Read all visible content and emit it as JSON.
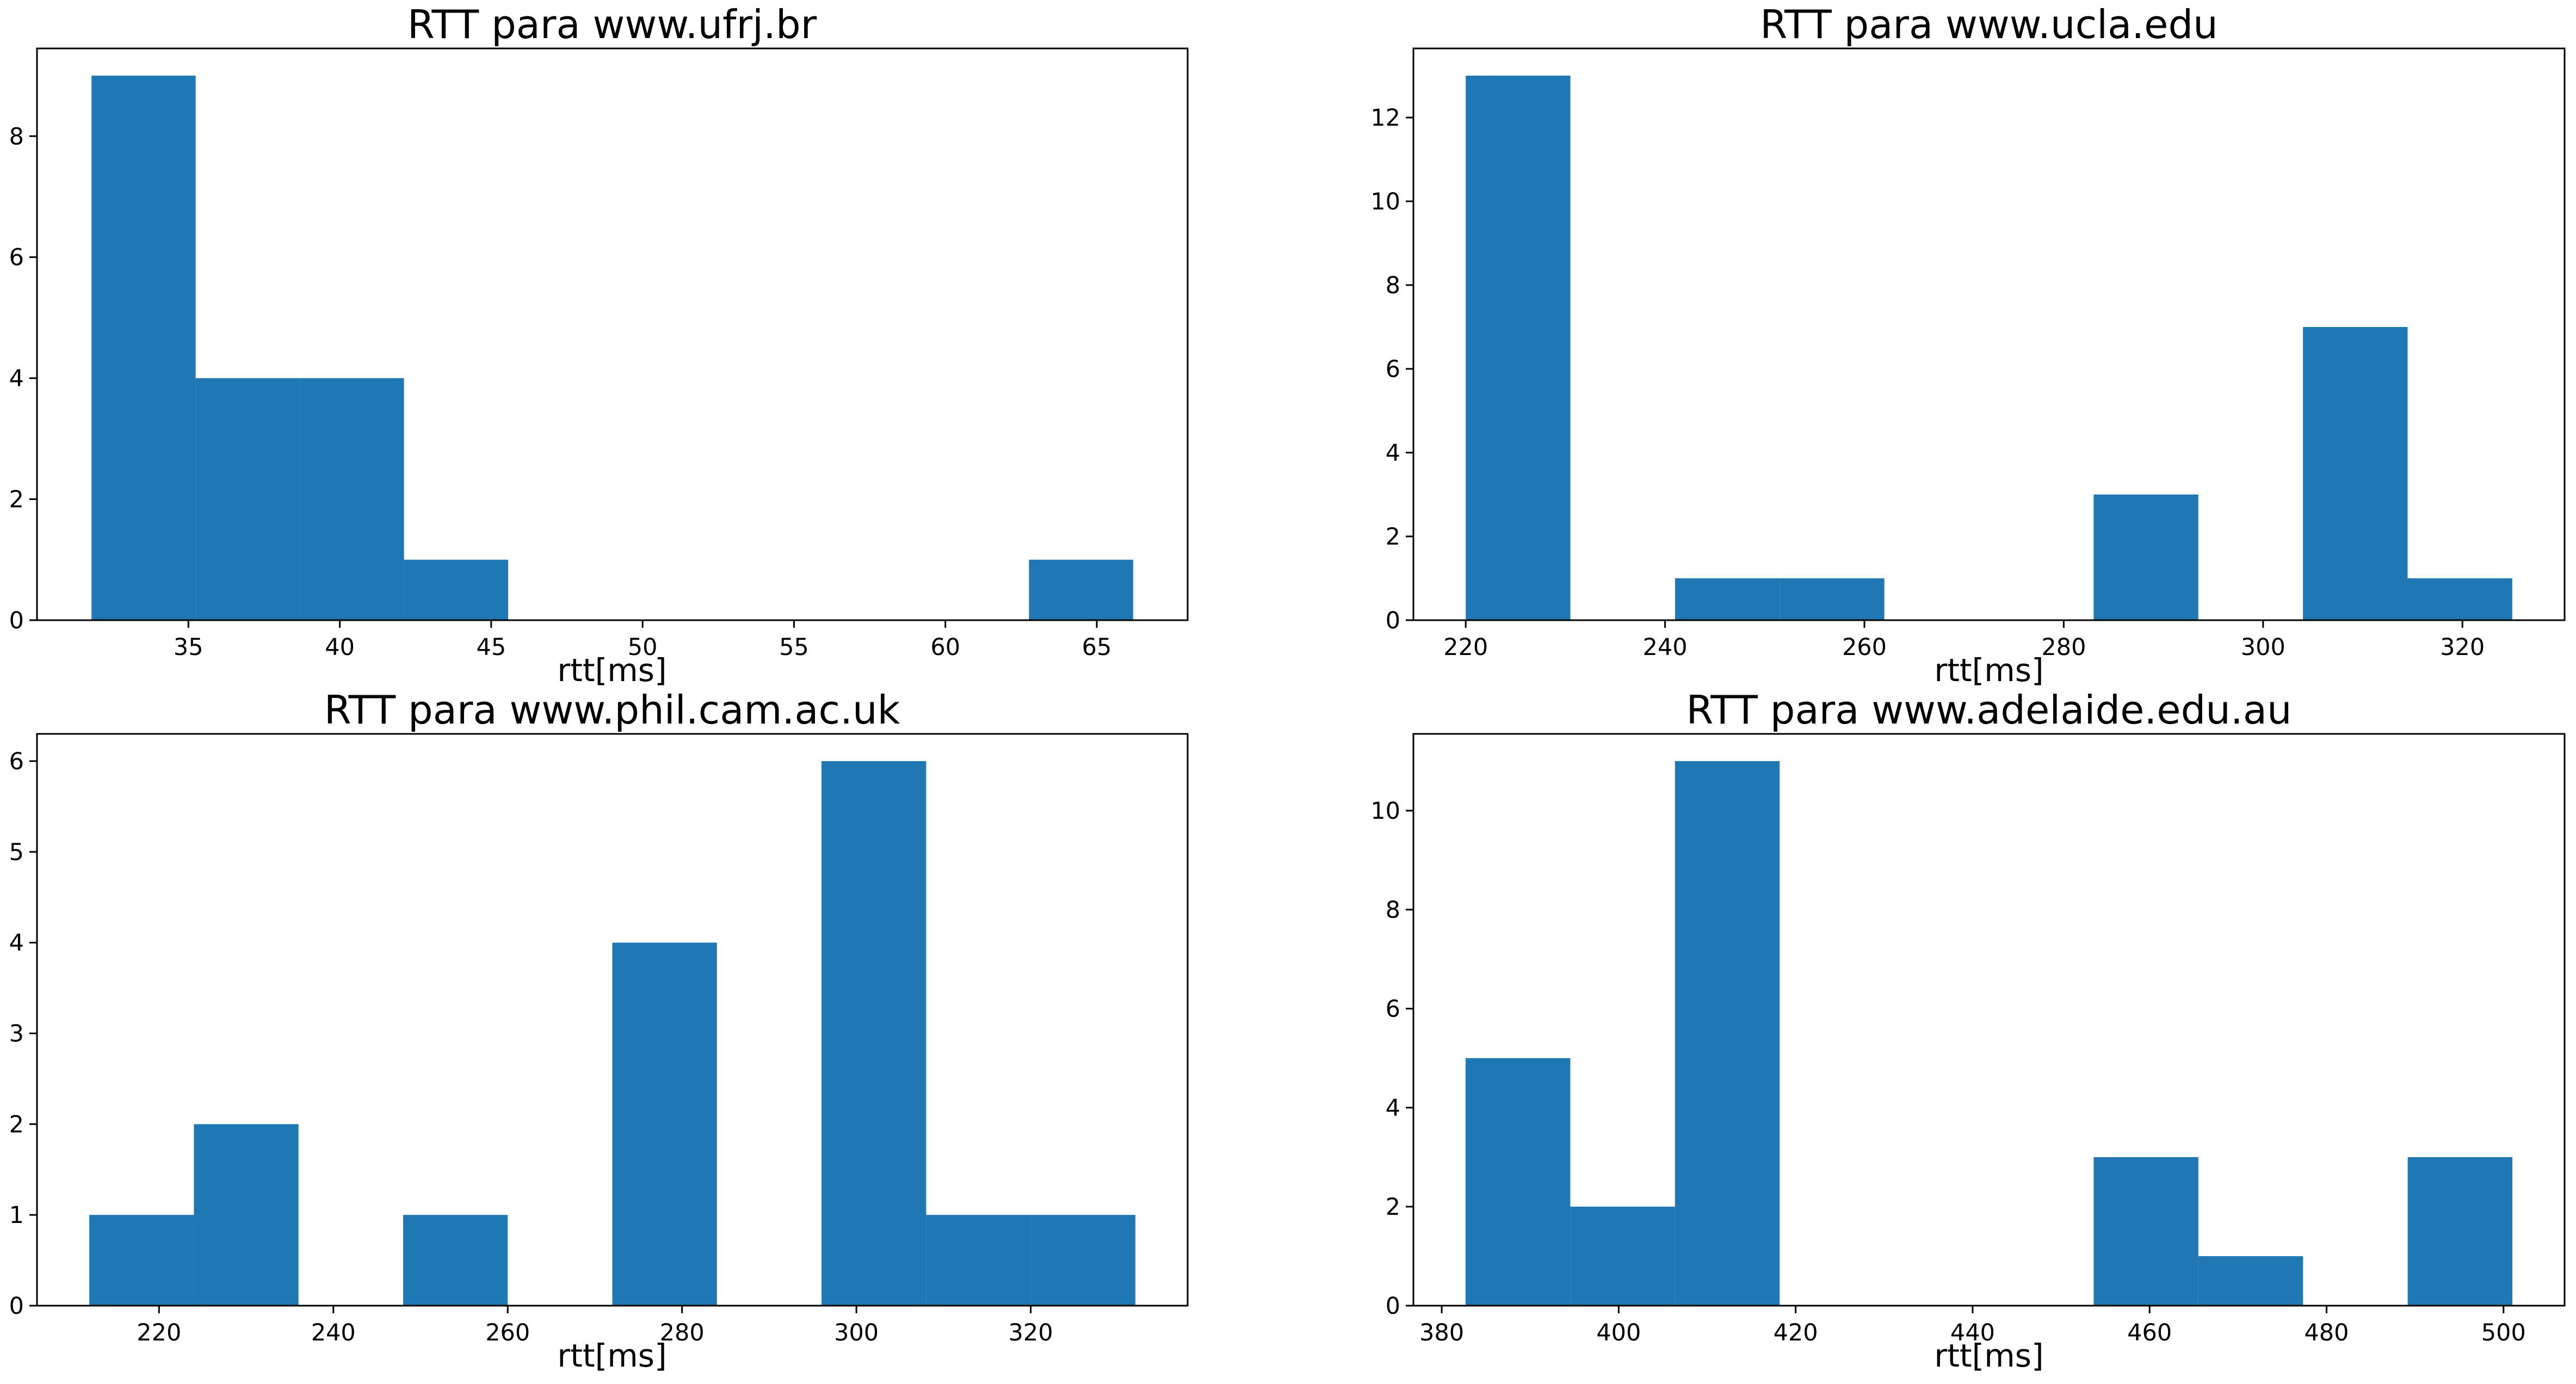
{
  "chart_data": [
    {
      "type": "bar",
      "title": "RTT para www.ufrj.br",
      "xlabel": "rtt[ms]",
      "ylabel": "",
      "bin_edges": [
        31.8,
        35.24,
        38.68,
        42.12,
        45.56,
        49.0,
        52.44,
        55.88,
        59.32,
        62.76,
        66.2
      ],
      "values": [
        9,
        4,
        4,
        1,
        0,
        0,
        0,
        0,
        0,
        1
      ],
      "color": "#1f77b4",
      "xlim": [
        30.0,
        68.0
      ],
      "ylim": [
        0,
        9.45
      ],
      "xticks": [
        35,
        40,
        45,
        50,
        55,
        60,
        65
      ],
      "yticks": [
        0,
        2,
        4,
        6,
        8
      ]
    },
    {
      "type": "bar",
      "title": "RTT para www.ucla.edu",
      "xlabel": "rtt[ms]",
      "ylabel": "",
      "bin_edges": [
        220.0,
        230.5,
        241.0,
        251.5,
        262.0,
        272.5,
        283.0,
        293.5,
        304.0,
        314.5,
        325.0
      ],
      "values": [
        13,
        0,
        1,
        1,
        0,
        0,
        3,
        0,
        7,
        1
      ],
      "color": "#1f77b4",
      "xlim": [
        214.75,
        330.25
      ],
      "ylim": [
        0,
        13.65
      ],
      "xticks": [
        220,
        240,
        260,
        280,
        300,
        320
      ],
      "yticks": [
        0,
        2,
        4,
        6,
        8,
        10,
        12
      ]
    },
    {
      "type": "bar",
      "title": "RTT para www.phil.cam.ac.uk",
      "xlabel": "rtt[ms]",
      "ylabel": "",
      "bin_edges": [
        212.0,
        224.0,
        236.0,
        248.0,
        260.0,
        272.0,
        284.0,
        296.0,
        308.0,
        320.0,
        332.0
      ],
      "values": [
        1,
        2,
        0,
        1,
        0,
        4,
        0,
        6,
        1,
        1
      ],
      "color": "#1f77b4",
      "xlim": [
        206.0,
        338.0
      ],
      "ylim": [
        0,
        6.3
      ],
      "xticks": [
        220,
        240,
        260,
        280,
        300,
        320
      ],
      "yticks": [
        0,
        1,
        2,
        3,
        4,
        5,
        6
      ]
    },
    {
      "type": "bar",
      "title": "RTT para www.adelaide.edu.au",
      "xlabel": "rtt[ms]",
      "ylabel": "",
      "bin_edges": [
        382.7,
        394.53,
        406.36,
        418.19,
        430.02,
        441.85,
        453.68,
        465.51,
        477.34,
        489.17,
        501.0
      ],
      "values": [
        5,
        2,
        11,
        0,
        0,
        0,
        3,
        1,
        0,
        3
      ],
      "color": "#1f77b4",
      "xlim": [
        376.8,
        506.9
      ],
      "ylim": [
        0,
        11.55
      ],
      "xticks": [
        380,
        400,
        420,
        440,
        460,
        480,
        500
      ],
      "yticks": [
        0,
        2,
        4,
        6,
        8,
        10
      ]
    }
  ]
}
